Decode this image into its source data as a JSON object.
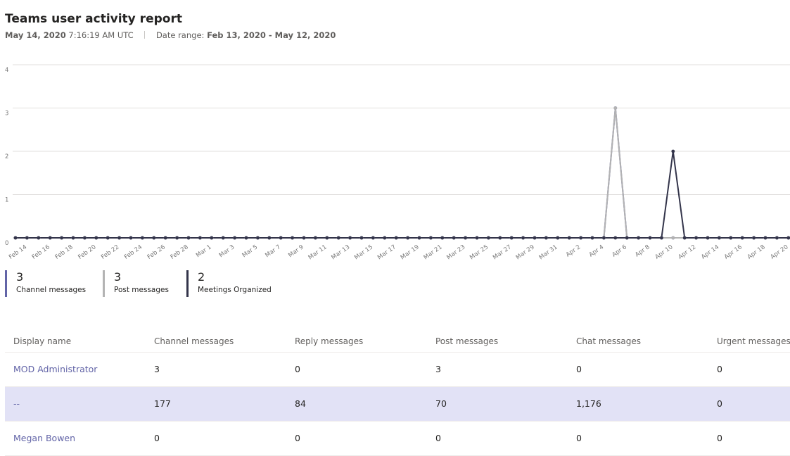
{
  "header": {
    "title": "Teams user activity report",
    "date": "May 14, 2020",
    "time": "7:16:19 AM UTC",
    "range_label": "Date range:",
    "range": "Feb 13, 2020 - May 12, 2020"
  },
  "chart_data": {
    "type": "line",
    "categories": [
      null,
      "Feb 14",
      null,
      "Feb 16",
      null,
      "Feb 18",
      null,
      "Feb 20",
      null,
      "Feb 22",
      null,
      "Feb 24",
      null,
      "Feb 26",
      null,
      "Feb 28",
      null,
      "Mar 1",
      null,
      "Mar 3",
      null,
      "Mar 5",
      null,
      "Mar 7",
      null,
      "Mar 9",
      null,
      "Mar 11",
      null,
      "Mar 13",
      null,
      "Mar 15",
      null,
      "Mar 17",
      null,
      "Mar 19",
      null,
      "Mar 21",
      null,
      "Mar 23",
      null,
      "Mar 25",
      null,
      "Mar 27",
      null,
      "Mar 29",
      null,
      "Mar 31",
      null,
      "Apr 2",
      null,
      "Apr 4",
      null,
      "Apr 6",
      null,
      "Apr 8",
      null,
      "Apr 10",
      null,
      "Apr 12",
      null,
      "Apr 14",
      null,
      "Apr 16",
      null,
      "Apr 18",
      null,
      "Apr 20"
    ],
    "ylim": [
      0,
      4
    ],
    "yticks": [
      0,
      1,
      2,
      3,
      4
    ],
    "grid": true,
    "series": [
      {
        "name": "Channel messages",
        "color": "#6264a7",
        "total": 3,
        "values": [
          0,
          0,
          0,
          0,
          0,
          0,
          0,
          0,
          0,
          0,
          0,
          0,
          0,
          0,
          0,
          0,
          0,
          0,
          0,
          0,
          0,
          0,
          0,
          0,
          0,
          0,
          0,
          0,
          0,
          0,
          0,
          0,
          0,
          0,
          0,
          0,
          0,
          0,
          0,
          0,
          0,
          0,
          0,
          0,
          0,
          0,
          0,
          0,
          0,
          0,
          0,
          0,
          3,
          0,
          0,
          0,
          0,
          0,
          0,
          0,
          0,
          0,
          0,
          0,
          0,
          0,
          0,
          0
        ]
      },
      {
        "name": "Post messages",
        "color": "#b3b3b3",
        "total": 3,
        "values": [
          0,
          0,
          0,
          0,
          0,
          0,
          0,
          0,
          0,
          0,
          0,
          0,
          0,
          0,
          0,
          0,
          0,
          0,
          0,
          0,
          0,
          0,
          0,
          0,
          0,
          0,
          0,
          0,
          0,
          0,
          0,
          0,
          0,
          0,
          0,
          0,
          0,
          0,
          0,
          0,
          0,
          0,
          0,
          0,
          0,
          0,
          0,
          0,
          0,
          0,
          0,
          0,
          3,
          0,
          0,
          0,
          0,
          0,
          0,
          0,
          0,
          0,
          0,
          0,
          0,
          0,
          0,
          0
        ]
      },
      {
        "name": "Meetings Organized",
        "color": "#33344a",
        "total": 2,
        "values": [
          0,
          0,
          0,
          0,
          0,
          0,
          0,
          0,
          0,
          0,
          0,
          0,
          0,
          0,
          0,
          0,
          0,
          0,
          0,
          0,
          0,
          0,
          0,
          0,
          0,
          0,
          0,
          0,
          0,
          0,
          0,
          0,
          0,
          0,
          0,
          0,
          0,
          0,
          0,
          0,
          0,
          0,
          0,
          0,
          0,
          0,
          0,
          0,
          0,
          0,
          0,
          0,
          0,
          0,
          0,
          0,
          0,
          2,
          0,
          0,
          0,
          0,
          0,
          0,
          0,
          0,
          0,
          0
        ]
      }
    ]
  },
  "table": {
    "columns": [
      "Display name",
      "Channel messages",
      "Reply messages",
      "Post messages",
      "Chat messages",
      "Urgent messages"
    ],
    "rows": [
      [
        "MOD Administrator",
        "3",
        "0",
        "3",
        "0",
        "0"
      ],
      [
        "--",
        "177",
        "84",
        "70",
        "1,176",
        "0"
      ],
      [
        "Megan Bowen",
        "0",
        "0",
        "0",
        "0",
        "0"
      ]
    ]
  }
}
